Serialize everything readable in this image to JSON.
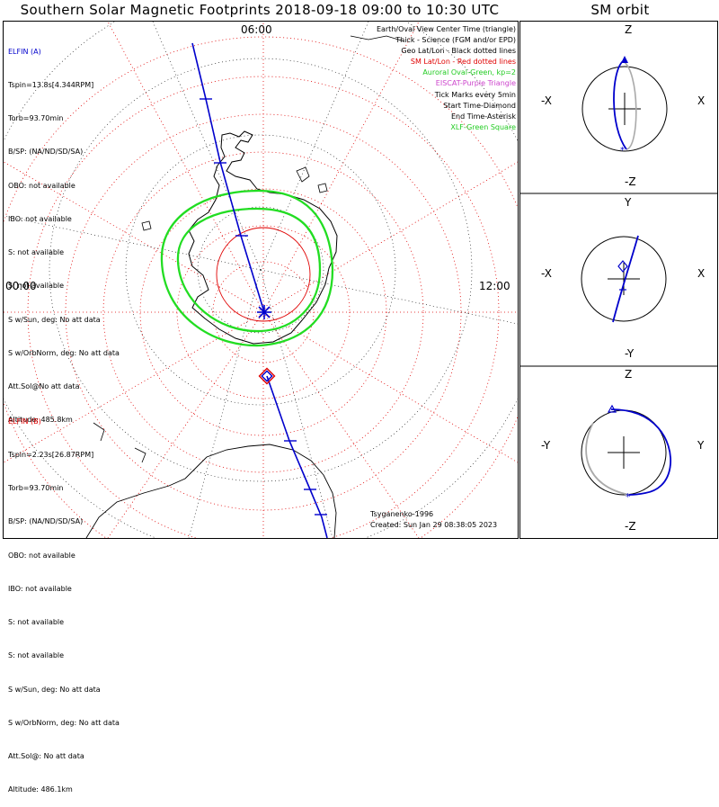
{
  "title": "Southern Solar Magnetic Footprints 2018-09-18 09:00 to 10:30 UTC",
  "orbit_title": "SM orbit",
  "map_labels": {
    "top": "06:00",
    "left": "00:00",
    "right": "12:00"
  },
  "elfin_a": {
    "lines": [
      "ELFIN (A)",
      "Tspin=13.8s[4.344RPM]",
      "Torb=93.70min",
      "B/SP: (NA/ND/SD/SA)",
      "OBO: not available",
      "IBO: not available",
      "S: not available",
      "S: not available",
      "S w/Sun, deg: No att data",
      "S w/OrbNorm, deg: No att data",
      "Att.Sol@No att data",
      "Altitude: 485.8km"
    ]
  },
  "elfin_b": {
    "lines": [
      "ELFIN (B)",
      "Tspin=2.23s[26.87RPM]",
      "Torb=93.70min",
      "B/SP: (NA/ND/SD/SA)",
      "OBO: not available",
      "IBO: not available",
      "S: not available",
      "S: not available",
      "S w/Sun, deg: No att data",
      "S w/OrbNorm, deg: No att data",
      "Att.Sol@: No att data",
      "Altitude: 486.1km"
    ]
  },
  "legend": [
    {
      "text": "Earth/Oval View Center Time (triangle)",
      "color": "#000000"
    },
    {
      "text": "Thick - Science (FGM and/or EPD)",
      "color": "#000000"
    },
    {
      "text": "Geo Lat/Lon - Black dotted lines",
      "color": "#000000"
    },
    {
      "text": "SM Lat/Lon - Red dotted lines",
      "color": "#e00000"
    },
    {
      "text": "Auroral Oval-Green, kp=2",
      "color": "#22cc22"
    },
    {
      "text": "EISCAT-Purple Triangle",
      "color": "#cc44cc"
    },
    {
      "text": "Tick Marks every 5min",
      "color": "#000000"
    },
    {
      "text": "Start Time-Diamond",
      "color": "#000000"
    },
    {
      "text": "End Time-Asterisk",
      "color": "#000000"
    },
    {
      "text": "XLF-Green Square",
      "color": "#22cc22"
    }
  ],
  "credits": [
    "Tsyganenko-1996",
    "Created: Sun Jan 29 08:38:05 2023"
  ],
  "orbit_panels": [
    {
      "top": "Z",
      "bottom": "-Z",
      "left": "-X",
      "right": "X"
    },
    {
      "top": "Y",
      "bottom": "-Y",
      "left": "-X",
      "right": "X"
    },
    {
      "top": "Z",
      "bottom": "-Z",
      "left": "-Y",
      "right": "Y"
    }
  ],
  "colors": {
    "track": "#0000cc",
    "oval": "#22dd22",
    "sm_grid": "#e00000",
    "geo_grid": "#000000"
  }
}
